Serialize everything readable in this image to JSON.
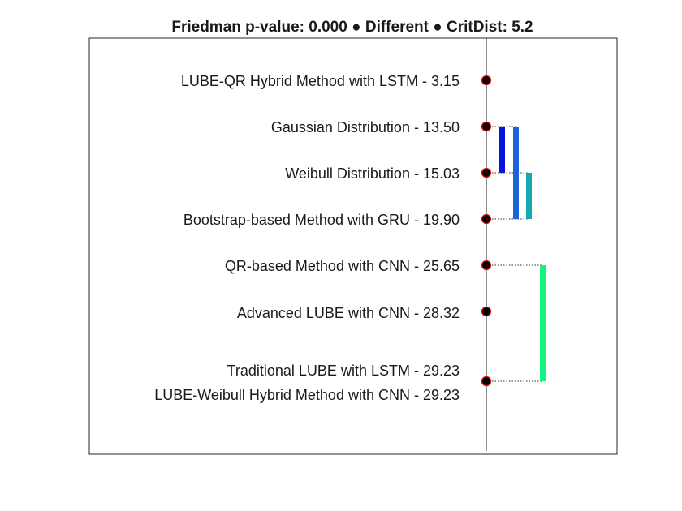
{
  "chart_data": {
    "type": "critical-difference",
    "title": "Friedman p-value: 0.000 ● Different ● CritDist: 5.2",
    "friedman_p_value": "0.000",
    "test_result": "Different",
    "critical_distance": 5.2,
    "methods": [
      {
        "name": "LUBE-QR Hybrid Method with LSTM",
        "rank": 3.15,
        "label": "LUBE-QR Hybrid Method with LSTM - 3.15"
      },
      {
        "name": "Gaussian Distribution",
        "rank": 13.5,
        "label": "Gaussian Distribution - 13.50"
      },
      {
        "name": "Weibull Distribution",
        "rank": 15.03,
        "label": "Weibull Distribution - 15.03"
      },
      {
        "name": "Bootstrap-based Method with GRU",
        "rank": 19.9,
        "label": "Bootstrap-based Method with GRU - 19.90"
      },
      {
        "name": "QR-based Method with CNN",
        "rank": 25.65,
        "label": "QR-based Method with CNN - 25.65"
      },
      {
        "name": "Advanced LUBE with CNN",
        "rank": 28.32,
        "label": "Advanced LUBE with CNN - 28.32"
      },
      {
        "name": "Traditional LUBE with LSTM",
        "rank": 29.23,
        "label": "Traditional LUBE with LSTM - 29.23"
      },
      {
        "name": "LUBE-Weibull Hybrid Method with CNN",
        "rank": 29.23,
        "label": "LUBE-Weibull Hybrid Method with CNN - 29.23"
      }
    ],
    "groups": [
      {
        "from_rank": 13.5,
        "to_rank": 15.03,
        "color": "#0a12e0"
      },
      {
        "from_rank": 13.5,
        "to_rank": 19.9,
        "color": "#1c63da"
      },
      {
        "from_rank": 15.03,
        "to_rank": 19.9,
        "color": "#13aab0"
      },
      {
        "from_rank": 25.65,
        "to_rank": 29.23,
        "color": "#14f47e"
      }
    ],
    "colors": {
      "marker_fill": "#000000",
      "marker_edge": "#e01010",
      "axis": "#262626",
      "connector": "#333333"
    }
  }
}
